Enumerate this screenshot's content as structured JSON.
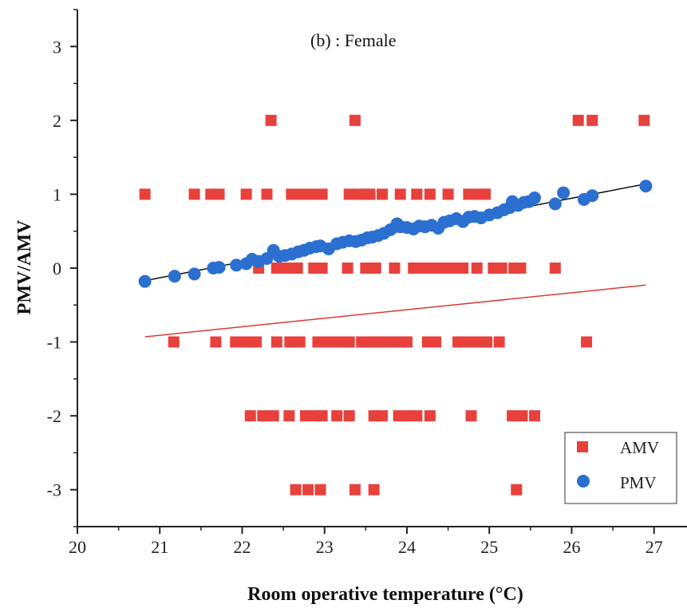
{
  "chart_data": {
    "type": "scatter",
    "annotation": "(b) : Female",
    "xlabel": "Room operative temperature (°C)",
    "ylabel": "PMV/AMV",
    "xlim": [
      20,
      27.4
    ],
    "ylim": [
      -3.5,
      3.5
    ],
    "xticks": [
      20,
      21,
      22,
      23,
      24,
      25,
      26,
      27
    ],
    "yticks": [
      -3,
      -2,
      -1,
      0,
      1,
      2,
      3
    ],
    "grid": false,
    "legend_position": "bottom-right",
    "series": [
      {
        "name": "AMV",
        "marker": "square",
        "color": "#e8413c",
        "points": [
          [
            20.82,
            1
          ],
          [
            21.42,
            1
          ],
          [
            21.62,
            1
          ],
          [
            21.72,
            1
          ],
          [
            22.05,
            1
          ],
          [
            22.3,
            1
          ],
          [
            22.6,
            1
          ],
          [
            22.72,
            1
          ],
          [
            22.85,
            1
          ],
          [
            22.97,
            1
          ],
          [
            23.3,
            1
          ],
          [
            23.4,
            1
          ],
          [
            23.5,
            1
          ],
          [
            23.55,
            1
          ],
          [
            23.7,
            1
          ],
          [
            23.92,
            1
          ],
          [
            24.12,
            1
          ],
          [
            24.28,
            1
          ],
          [
            24.5,
            1
          ],
          [
            24.75,
            1
          ],
          [
            24.88,
            1
          ],
          [
            24.95,
            1
          ],
          [
            22.35,
            2
          ],
          [
            23.37,
            2
          ],
          [
            26.08,
            2
          ],
          [
            26.25,
            2
          ],
          [
            26.88,
            2
          ],
          [
            22.2,
            0
          ],
          [
            22.42,
            0
          ],
          [
            22.55,
            0
          ],
          [
            22.67,
            0
          ],
          [
            22.87,
            0
          ],
          [
            22.97,
            0
          ],
          [
            23.28,
            0
          ],
          [
            23.5,
            0
          ],
          [
            23.62,
            0
          ],
          [
            23.85,
            0
          ],
          [
            24.08,
            0
          ],
          [
            24.2,
            0
          ],
          [
            24.33,
            0
          ],
          [
            24.45,
            0
          ],
          [
            24.55,
            0
          ],
          [
            24.68,
            0
          ],
          [
            24.85,
            0
          ],
          [
            25.05,
            0
          ],
          [
            25.15,
            0
          ],
          [
            25.3,
            0
          ],
          [
            25.38,
            0
          ],
          [
            25.8,
            0
          ],
          [
            21.17,
            -1
          ],
          [
            21.68,
            -1
          ],
          [
            21.92,
            -1
          ],
          [
            22.05,
            -1
          ],
          [
            22.17,
            -1
          ],
          [
            22.42,
            -1
          ],
          [
            22.58,
            -1
          ],
          [
            22.7,
            -1
          ],
          [
            22.92,
            -1
          ],
          [
            23.05,
            -1
          ],
          [
            23.18,
            -1
          ],
          [
            23.3,
            -1
          ],
          [
            23.45,
            -1
          ],
          [
            23.55,
            -1
          ],
          [
            23.65,
            -1
          ],
          [
            23.75,
            -1
          ],
          [
            23.85,
            -1
          ],
          [
            23.95,
            -1
          ],
          [
            24.0,
            -1
          ],
          [
            24.25,
            -1
          ],
          [
            24.35,
            -1
          ],
          [
            24.62,
            -1
          ],
          [
            24.72,
            -1
          ],
          [
            24.85,
            -1
          ],
          [
            24.97,
            -1
          ],
          [
            25.12,
            -1
          ],
          [
            26.18,
            -1
          ],
          [
            22.1,
            -2
          ],
          [
            22.25,
            -2
          ],
          [
            22.38,
            -2
          ],
          [
            22.57,
            -2
          ],
          [
            22.77,
            -2
          ],
          [
            22.88,
            -2
          ],
          [
            22.97,
            -2
          ],
          [
            23.15,
            -2
          ],
          [
            23.3,
            -2
          ],
          [
            23.6,
            -2
          ],
          [
            23.7,
            -2
          ],
          [
            23.9,
            -2
          ],
          [
            24.02,
            -2
          ],
          [
            24.12,
            -2
          ],
          [
            24.28,
            -2
          ],
          [
            24.78,
            -2
          ],
          [
            25.28,
            -2
          ],
          [
            25.4,
            -2
          ],
          [
            25.55,
            -2
          ],
          [
            22.65,
            -3
          ],
          [
            22.8,
            -3
          ],
          [
            22.95,
            -3
          ],
          [
            23.37,
            -3
          ],
          [
            23.6,
            -3
          ],
          [
            25.33,
            -3
          ]
        ]
      },
      {
        "name": "PMV",
        "marker": "circle",
        "color": "#2b6fd0",
        "points": [
          [
            20.82,
            -0.18
          ],
          [
            21.18,
            -0.11
          ],
          [
            21.42,
            -0.08
          ],
          [
            21.65,
            0.0
          ],
          [
            21.72,
            0.01
          ],
          [
            21.93,
            0.04
          ],
          [
            22.05,
            0.06
          ],
          [
            22.12,
            0.12
          ],
          [
            22.2,
            0.09
          ],
          [
            22.3,
            0.13
          ],
          [
            22.38,
            0.24
          ],
          [
            22.45,
            0.16
          ],
          [
            22.52,
            0.17
          ],
          [
            22.6,
            0.19
          ],
          [
            22.68,
            0.22
          ],
          [
            22.75,
            0.24
          ],
          [
            22.82,
            0.27
          ],
          [
            22.9,
            0.29
          ],
          [
            22.95,
            0.3
          ],
          [
            23.05,
            0.26
          ],
          [
            23.15,
            0.33
          ],
          [
            23.22,
            0.35
          ],
          [
            23.3,
            0.37
          ],
          [
            23.38,
            0.36
          ],
          [
            23.45,
            0.38
          ],
          [
            23.52,
            0.41
          ],
          [
            23.58,
            0.42
          ],
          [
            23.65,
            0.44
          ],
          [
            23.72,
            0.47
          ],
          [
            23.8,
            0.52
          ],
          [
            23.88,
            0.6
          ],
          [
            23.92,
            0.56
          ],
          [
            24.0,
            0.55
          ],
          [
            24.08,
            0.53
          ],
          [
            24.15,
            0.57
          ],
          [
            24.22,
            0.56
          ],
          [
            24.3,
            0.58
          ],
          [
            24.38,
            0.54
          ],
          [
            24.45,
            0.62
          ],
          [
            24.52,
            0.64
          ],
          [
            24.6,
            0.67
          ],
          [
            24.68,
            0.63
          ],
          [
            24.75,
            0.69
          ],
          [
            24.82,
            0.7
          ],
          [
            24.9,
            0.68
          ],
          [
            25.0,
            0.72
          ],
          [
            25.1,
            0.75
          ],
          [
            25.18,
            0.79
          ],
          [
            25.25,
            0.82
          ],
          [
            25.28,
            0.9
          ],
          [
            25.35,
            0.85
          ],
          [
            25.42,
            0.89
          ],
          [
            25.48,
            0.9
          ],
          [
            25.55,
            0.95
          ],
          [
            25.8,
            0.87
          ],
          [
            25.9,
            1.02
          ],
          [
            26.15,
            0.93
          ],
          [
            26.25,
            0.98
          ],
          [
            26.9,
            1.11
          ]
        ]
      }
    ],
    "fit_lines": [
      {
        "series": "PMV",
        "color": "#111111",
        "x": [
          20.82,
          26.9
        ],
        "y": [
          -0.17,
          1.14
        ]
      },
      {
        "series": "AMV",
        "color": "#d93a36",
        "x": [
          20.82,
          26.9
        ],
        "y": [
          -0.93,
          -0.23
        ]
      }
    ]
  }
}
